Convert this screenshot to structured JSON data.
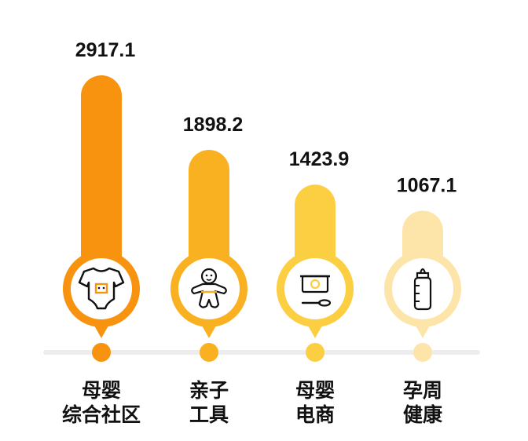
{
  "chart_data": {
    "type": "bar",
    "categories": [
      [
        "母婴",
        "综合社区"
      ],
      [
        "亲子",
        "工具"
      ],
      [
        "母婴",
        "电商"
      ],
      [
        "孕周",
        "健康"
      ]
    ],
    "values": [
      2917.1,
      1898.2,
      1423.9,
      1067.1
    ],
    "value_labels": [
      "2917.1",
      "1898.2",
      "1423.9",
      "1067.1"
    ],
    "colors": [
      "#F7930E",
      "#FAB121",
      "#FCCE42",
      "#FDE5A9"
    ],
    "icons": [
      "baby-bodysuit-icon",
      "baby-toy-icon",
      "baby-food-bowl-icon",
      "baby-bottle-icon"
    ],
    "axis_color": "#EDEDED",
    "title": "",
    "xlabel": "",
    "ylabel": ""
  }
}
